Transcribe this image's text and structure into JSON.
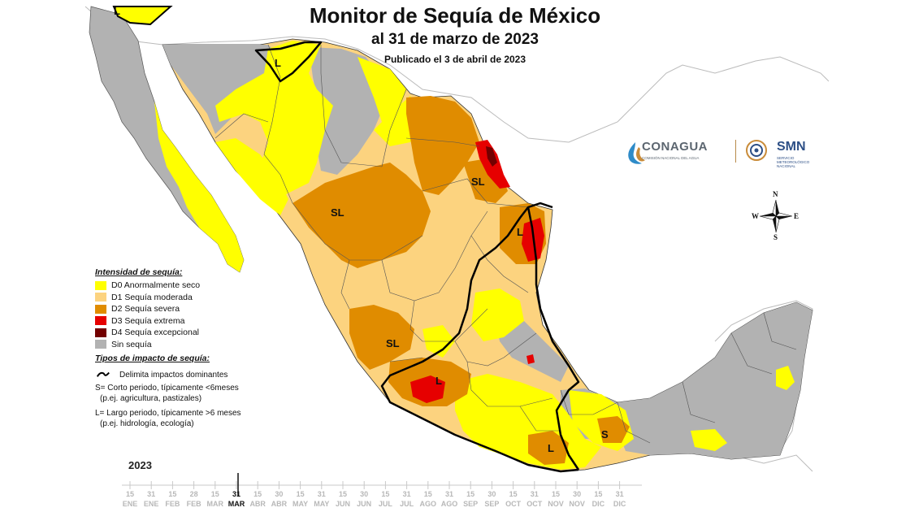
{
  "title": {
    "main": "Monitor de Sequía de México",
    "sub": "al 31 de marzo de 2023",
    "published": "Publicado el 3 de abril de 2023"
  },
  "legend": {
    "intensity_header": "Intensidad de sequía:",
    "items": [
      {
        "label": "D0 Anormalmente seco",
        "color": "#ffff00"
      },
      {
        "label": "D1 Sequía moderada",
        "color": "#fcd37f"
      },
      {
        "label": "D2 Sequía severa",
        "color": "#e08c00"
      },
      {
        "label": "D3 Sequía extrema",
        "color": "#e60000"
      },
      {
        "label": "D4 Sequía excepcional",
        "color": "#730000"
      },
      {
        "label": "Sin sequía",
        "color": "#b2b2b2"
      }
    ],
    "impact_header": "Tipos de impacto de sequía:",
    "boundary_label": "Delimita impactos dominantes",
    "short_line1": "S= Corto periodo, típicamente <6meses",
    "short_line2": "(p.ej. agricultura, pastizales)",
    "long_line1": "L= Largo periodo, típicamente >6 meses",
    "long_line2": "(p.ej. hidrología, ecología)"
  },
  "logos": {
    "conagua": "CONAGUA",
    "conagua_sub": "COMISIÓN NACIONAL DEL AGUA",
    "smn": "SMN",
    "smn_sub": "SERVICIO METEOROLÓGICO NACIONAL"
  },
  "compass": {
    "n": "N",
    "s": "S",
    "e": "E",
    "w": "W"
  },
  "region_labels": [
    {
      "id": "l-north",
      "text": "L"
    },
    {
      "id": "l-sonora",
      "text": "L"
    },
    {
      "id": "sl-chihuahua",
      "text": "SL"
    },
    {
      "id": "sl-tamaulipas",
      "text": "SL"
    },
    {
      "id": "l-tamaulipas",
      "text": "L"
    },
    {
      "id": "sl-jalisco",
      "text": "SL"
    },
    {
      "id": "l-guerrero",
      "text": "L"
    },
    {
      "id": "l-oaxaca",
      "text": "L"
    },
    {
      "id": "s-veracruz",
      "text": "S"
    }
  ],
  "timeline": {
    "year": "2023",
    "months": [
      "ENE",
      "ENE",
      "FEB",
      "FEB",
      "MAR",
      "MAR",
      "ABR",
      "ABR",
      "MAY",
      "MAY",
      "JUN",
      "JUN",
      "JUL",
      "JUL",
      "AGO",
      "AGO",
      "SEP",
      "SEP",
      "OCT",
      "OCT",
      "NOV",
      "NOV",
      "DIC",
      "DIC"
    ],
    "days": [
      "15",
      "31",
      "15",
      "28",
      "15",
      "31",
      "15",
      "30",
      "15",
      "31",
      "15",
      "30",
      "15",
      "31",
      "15",
      "31",
      "15",
      "30",
      "15",
      "31",
      "15",
      "30",
      "15",
      "31"
    ],
    "active_index": 5,
    "active_day": "31",
    "active_month": "MAR"
  },
  "colors": {
    "d0": "#ffff00",
    "d1": "#fcd37f",
    "d2": "#e08c00",
    "d3": "#e60000",
    "d4": "#730000",
    "none": "#b2b2b2",
    "neighbor": "#ffffff",
    "coast": "#a0a0a0"
  }
}
